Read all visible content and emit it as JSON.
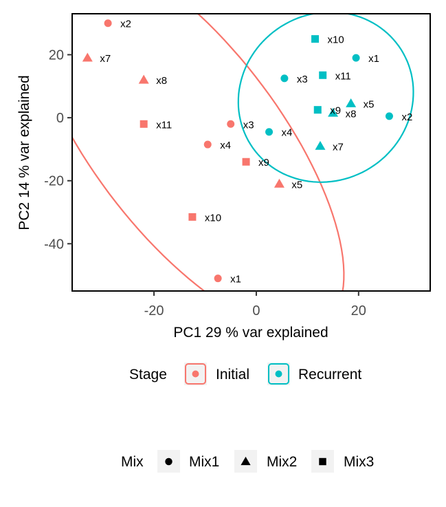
{
  "chart_data": {
    "type": "scatter",
    "xlabel": "PC1 29 % var explained",
    "ylabel": "PC2 14 % var explained",
    "xlim": [
      -36,
      34
    ],
    "ylim": [
      -55,
      33
    ],
    "xticks": [
      -20,
      0,
      20
    ],
    "yticks": [
      20,
      0,
      -20,
      -40
    ],
    "grid": false,
    "ellipses": true,
    "legend_position": "bottom",
    "groups": [
      {
        "name": "Initial",
        "color": "#F8766D"
      },
      {
        "name": "Recurrent",
        "color": "#00BFC4"
      }
    ],
    "shapes": [
      {
        "name": "Mix1",
        "shape": "circle"
      },
      {
        "name": "Mix2",
        "shape": "triangle"
      },
      {
        "name": "Mix3",
        "shape": "square"
      }
    ],
    "points": [
      {
        "label": "x2",
        "x": -29,
        "y": 30,
        "group": "Initial",
        "mix": "Mix1"
      },
      {
        "label": "x7",
        "x": -33,
        "y": 19,
        "group": "Initial",
        "mix": "Mix2"
      },
      {
        "label": "x8",
        "x": -22,
        "y": 12,
        "group": "Initial",
        "mix": "Mix2"
      },
      {
        "label": "x11",
        "x": -22,
        "y": -2,
        "group": "Initial",
        "mix": "Mix3"
      },
      {
        "label": "x3",
        "x": -5,
        "y": -2,
        "group": "Initial",
        "mix": "Mix1"
      },
      {
        "label": "x4",
        "x": -9.5,
        "y": -8.5,
        "group": "Initial",
        "mix": "Mix1"
      },
      {
        "label": "x9",
        "x": -2,
        "y": -14,
        "group": "Initial",
        "mix": "Mix3"
      },
      {
        "label": "x5",
        "x": 4.5,
        "y": -21,
        "group": "Initial",
        "mix": "Mix2"
      },
      {
        "label": "x10",
        "x": -12.5,
        "y": -31.5,
        "group": "Initial",
        "mix": "Mix3"
      },
      {
        "label": "x1",
        "x": -7.5,
        "y": -51,
        "group": "Initial",
        "mix": "Mix1"
      },
      {
        "label": "x10",
        "x": 11.5,
        "y": 25,
        "group": "Recurrent",
        "mix": "Mix3"
      },
      {
        "label": "x1",
        "x": 19.5,
        "y": 19,
        "group": "Recurrent",
        "mix": "Mix1"
      },
      {
        "label": "x3",
        "x": 5.5,
        "y": 12.5,
        "group": "Recurrent",
        "mix": "Mix1"
      },
      {
        "label": "x11",
        "x": 13,
        "y": 13.5,
        "group": "Recurrent",
        "mix": "Mix3"
      },
      {
        "label": "x5",
        "x": 18.5,
        "y": 4.5,
        "group": "Recurrent",
        "mix": "Mix2"
      },
      {
        "label": "x9",
        "x": 12,
        "y": 2.5,
        "group": "Recurrent",
        "mix": "Mix3"
      },
      {
        "label": "x8",
        "x": 15,
        "y": 1.5,
        "group": "Recurrent",
        "mix": "Mix2"
      },
      {
        "label": "x2",
        "x": 26,
        "y": 0.5,
        "group": "Recurrent",
        "mix": "Mix1"
      },
      {
        "label": "x4",
        "x": 2.5,
        "y": -4.5,
        "group": "Recurrent",
        "mix": "Mix1"
      },
      {
        "label": "x7",
        "x": 12.5,
        "y": -9,
        "group": "Recurrent",
        "mix": "Mix2"
      }
    ]
  },
  "legend": {
    "stage_title": "Stage",
    "mix_title": "Mix"
  }
}
